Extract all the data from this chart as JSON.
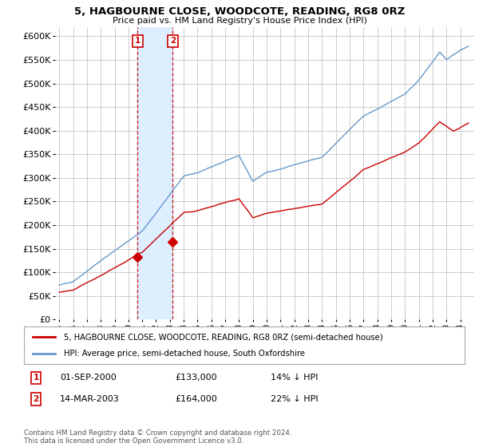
{
  "title": "5, HAGBOURNE CLOSE, WOODCOTE, READING, RG8 0RZ",
  "subtitle": "Price paid vs. HM Land Registry's House Price Index (HPI)",
  "legend_label_red": "5, HAGBOURNE CLOSE, WOODCOTE, READING, RG8 0RZ (semi-detached house)",
  "legend_label_blue": "HPI: Average price, semi-detached house, South Oxfordshire",
  "annotation1_date": "01-SEP-2000",
  "annotation1_price": "£133,000",
  "annotation1_hpi": "14% ↓ HPI",
  "annotation2_date": "14-MAR-2003",
  "annotation2_price": "£164,000",
  "annotation2_hpi": "22% ↓ HPI",
  "footer": "Contains HM Land Registry data © Crown copyright and database right 2024.\nThis data is licensed under the Open Government Licence v3.0.",
  "sale1_x": 2000.667,
  "sale1_y": 133000,
  "sale2_x": 2003.208,
  "sale2_y": 164000,
  "red_color": "#cc0000",
  "blue_color": "#6699cc",
  "bg_color": "#ffffff",
  "grid_color": "#cccccc",
  "annotation_box_color": "#cc0000",
  "vline_color": "#cc0000",
  "shade_color": "#ddeeff",
  "yticks": [
    0,
    50000,
    100000,
    150000,
    200000,
    250000,
    300000,
    350000,
    400000,
    450000,
    500000,
    550000,
    600000
  ],
  "xlim_start": 1994.7,
  "xlim_end": 2025.0,
  "ylim_top": 620000
}
